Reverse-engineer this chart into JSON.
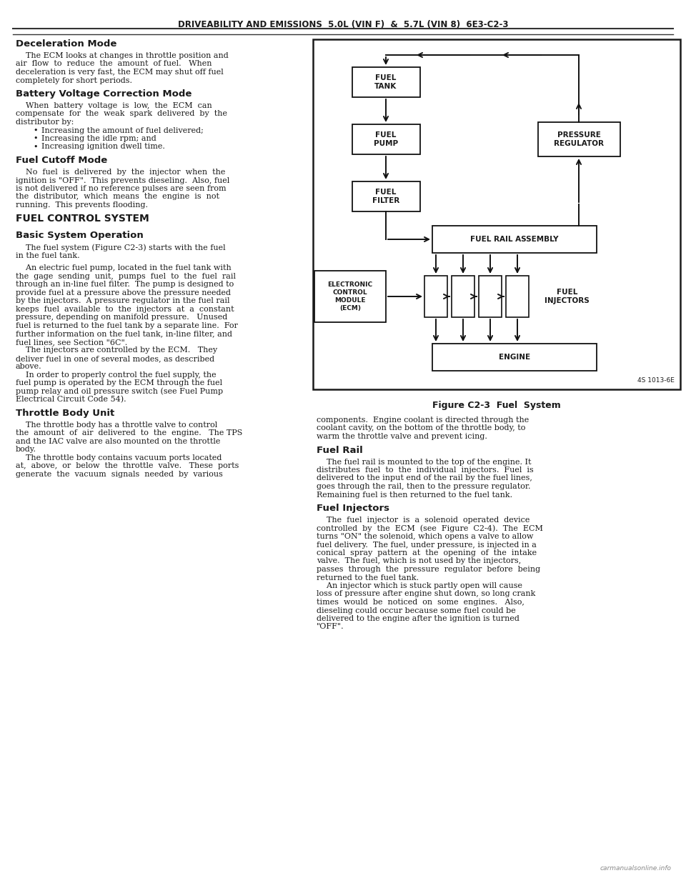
{
  "page_bg": "#ffffff",
  "header_text": "DRIVEABILITY AND EMISSIONS  5.0L (VIN F)  &  5.7L (VIN 8)  6E3-C2-3",
  "text_color": "#1a1a1a",
  "footer_text": "carmanualsonline.info",
  "left_sections": [
    {
      "heading": "Deceleration Mode",
      "heading_style": "bold",
      "body": [
        "    The ECM looks at changes in throttle position and",
        "air  flow  to  reduce  the  amount  of fuel.   When",
        "deceleration is very fast, the ECM may shut off fuel",
        "completely for short periods."
      ]
    },
    {
      "heading": "Battery Voltage Correction Mode",
      "heading_style": "bold",
      "body": [
        "    When  battery  voltage  is  low,  the  ECM  can",
        "compensate  for  the  weak  spark  delivered  by  the",
        "distributor by:",
        "•   Increasing the amount of fuel delivered;",
        "•   Increasing the idle rpm; and",
        "•   Increasing ignition dwell time."
      ]
    },
    {
      "heading": "Fuel Cutoff Mode",
      "heading_style": "bold",
      "body": [
        "    No  fuel  is  delivered  by  the  injector  when  the",
        "ignition is \"OFF\".  This prevents dieseling.  Also, fuel",
        "is not delivered if no reference pulses are seen from",
        "the  distributor,  which  means  the  engine  is  not",
        "running.  This prevents flooding."
      ]
    },
    {
      "heading": "FUEL CONTROL SYSTEM",
      "heading_style": "bold_caps",
      "body": []
    },
    {
      "heading": "Basic System Operation",
      "heading_style": "bold",
      "body": [
        "    The fuel system (Figure C2-3) starts with the fuel",
        "in the fuel tank.",
        "",
        "    An electric fuel pump, located in the fuel tank with",
        "the  gage  sending  unit,  pumps  fuel  to  the  fuel  rail",
        "through an in-line fuel filter.  The pump is designed to",
        "provide fuel at a pressure above the pressure needed",
        "by the injectors.  A pressure regulator in the fuel rail",
        "keeps  fuel  available  to  the  injectors  at  a  constant",
        "pressure, depending on manifold pressure.   Unused",
        "fuel is returned to the fuel tank by a separate line.  For",
        "further information on the fuel tank, in-line filter, and",
        "fuel lines, see Section \"6C\".",
        "    The injectors are controlled by the ECM.   They",
        "deliver fuel in one of several modes, as described",
        "above.",
        "    In order to properly control the fuel supply, the",
        "fuel pump is operated by the ECM through the fuel",
        "pump relay and oil pressure switch (see Fuel Pump",
        "Electrical Circuit Code 54)."
      ]
    },
    {
      "heading": "Throttle Body Unit",
      "heading_style": "bold",
      "body": [
        "    The throttle body has a throttle valve to control",
        "the  amount  of  air  delivered  to  the  engine.   The TPS",
        "and the IAC valve are also mounted on the throttle",
        "body.",
        "    The throttle body contains vacuum ports located",
        "at,  above,  or  below  the  throttle  valve.   These  ports",
        "generate  the  vacuum  signals  needed  by  various"
      ]
    }
  ],
  "right_sections_below_diagram": [
    {
      "heading": null,
      "body": [
        "components.  Engine coolant is directed through the",
        "coolant cavity, on the bottom of the throttle body, to",
        "warm the throttle valve and prevent icing."
      ]
    },
    {
      "heading": "Fuel Rail",
      "heading_style": "bold",
      "body": [
        "    The fuel rail is mounted to the top of the engine. It",
        "distributes  fuel  to  the  individual  injectors.  Fuel  is",
        "delivered to the input end of the rail by the fuel lines,",
        "goes through the rail, then to the pressure regulator.",
        "Remaining fuel is then returned to the fuel tank."
      ]
    },
    {
      "heading": "Fuel Injectors",
      "heading_style": "bold",
      "body": [
        "    The  fuel  injector  is  a  solenoid  operated  device",
        "controlled  by  the  ECM  (see  Figure  C2-4).  The  ECM",
        "turns \"ON\" the solenoid, which opens a valve to allow",
        "fuel delivery.  The fuel, under pressure, is injected in a",
        "conical  spray  pattern  at  the  opening  of  the  intake",
        "valve.  The fuel, which is not used by the injectors,",
        "passes  through  the  pressure  regulator  before  being",
        "returned to the fuel tank.",
        "    An injector which is stuck partly open will cause",
        "loss of pressure after engine shut down, so long crank",
        "times  would  be  noticed  on  some  engines.   Also,",
        "dieseling could occur because some fuel could be",
        "delivered to the engine after the ignition is turned",
        "\"OFF\"."
      ]
    }
  ],
  "diagram_caption": "Figure C2-3  Fuel  System",
  "diagram_note": "4S 1013-6E"
}
